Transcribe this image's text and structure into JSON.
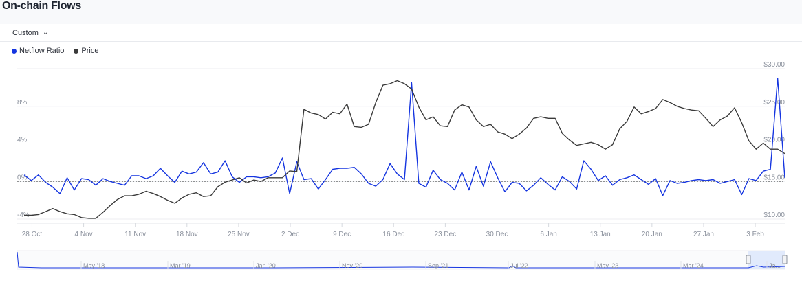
{
  "page": {
    "title": "On-chain Flows"
  },
  "toolbar": {
    "range_label": "Custom"
  },
  "legend": [
    {
      "label": "Netflow Ratio",
      "color": "#1535e0"
    },
    {
      "label": "Price",
      "color": "#3a3a3a"
    }
  ],
  "chart_data": {
    "type": "line",
    "x_tick_labels": [
      "28 Oct",
      "4 Nov",
      "11 Nov",
      "18 Nov",
      "25 Nov",
      "2 Dec",
      "9 Dec",
      "16 Dec",
      "23 Dec",
      "30 Dec",
      "6 Jan",
      "13 Jan",
      "20 Jan",
      "27 Jan",
      "3 Feb"
    ],
    "x_range": [
      "2024-10-26",
      "2025-02-07"
    ],
    "left_axis": {
      "ticks": [
        "-4%",
        "0%",
        "4%",
        "8%"
      ],
      "values": [
        -4,
        0,
        4,
        8
      ],
      "range": [
        -4,
        12
      ]
    },
    "right_axis": {
      "ticks": [
        "$10.00",
        "$15.00",
        "$20.00",
        "$25.00",
        "$30.00"
      ],
      "values": [
        10,
        15,
        20,
        25,
        30
      ],
      "range": [
        10,
        30
      ]
    },
    "grid": true,
    "series": [
      {
        "name": "Netflow Ratio",
        "axis": "left",
        "color": "#1535e0",
        "values": [
          0.7,
          0.1,
          0.7,
          -0.1,
          -0.6,
          -1.3,
          0.4,
          -0.9,
          0.3,
          0.2,
          -0.4,
          0.3,
          0.0,
          -0.2,
          -0.4,
          0.6,
          0.6,
          0.3,
          0.6,
          1.4,
          0.6,
          -0.1,
          1.1,
          0.8,
          1.0,
          2.0,
          0.8,
          1.0,
          2.2,
          0.5,
          -0.1,
          0.5,
          0.5,
          0.4,
          0.5,
          0.9,
          2.5,
          -1.3,
          2.1,
          0.2,
          0.3,
          -0.8,
          0.2,
          1.3,
          1.4,
          1.4,
          1.5,
          0.8,
          -0.2,
          -0.5,
          0.2,
          1.9,
          0.8,
          0.2,
          10.5,
          -0.2,
          -0.6,
          1.2,
          0.2,
          -0.2,
          -0.9,
          1.0,
          -0.9,
          1.6,
          -0.5,
          2.1,
          0.4,
          -1.1,
          -0.1,
          -0.2,
          -1.0,
          -0.4,
          0.4,
          -0.3,
          -0.9,
          0.5,
          0.0,
          -0.8,
          2.2,
          1.3,
          0.1,
          0.6,
          -0.4,
          0.2,
          0.4,
          0.7,
          0.2,
          -0.3,
          0.3,
          -1.5,
          0.1,
          -0.2,
          -0.1,
          0.1,
          0.2,
          0.1,
          0.2,
          -0.2,
          0.0,
          0.2,
          -1.4,
          0.3,
          0.1,
          1.1,
          1.3,
          11.0,
          0.4
        ]
      },
      {
        "name": "Price",
        "axis": "right",
        "color": "#3a3a3a",
        "values": [
          10.5,
          10.5,
          10.6,
          11.0,
          11.4,
          11.0,
          10.7,
          10.6,
          10.2,
          10.1,
          10.1,
          10.9,
          11.8,
          12.6,
          13.1,
          13.1,
          13.3,
          13.7,
          13.4,
          13.0,
          12.5,
          12.1,
          12.8,
          13.3,
          13.5,
          13.0,
          13.1,
          14.3,
          14.9,
          15.2,
          15.5,
          14.8,
          15.2,
          15.0,
          15.5,
          15.5,
          15.5,
          16.4,
          16.3,
          24.6,
          24.1,
          23.9,
          23.3,
          24.2,
          24.0,
          25.3,
          22.3,
          22.2,
          22.6,
          25.5,
          27.8,
          28.0,
          28.4,
          28.0,
          27.3,
          24.9,
          23.2,
          23.6,
          22.4,
          22.3,
          24.5,
          25.2,
          24.9,
          23.2,
          22.3,
          22.6,
          21.6,
          21.3,
          20.7,
          21.3,
          22.1,
          23.4,
          23.6,
          23.4,
          23.4,
          21.4,
          20.5,
          19.8,
          20.0,
          20.2,
          19.9,
          19.3,
          19.9,
          22.0,
          23.0,
          24.9,
          24.0,
          24.3,
          24.7,
          25.9,
          25.5,
          25.0,
          24.7,
          24.5,
          24.4,
          23.4,
          22.3,
          23.2,
          23.7,
          24.8,
          22.8,
          20.4,
          19.3,
          20.1,
          19.3,
          19.3,
          18.7
        ]
      }
    ]
  },
  "navigator": {
    "labels": [
      "May '18",
      "Mar '19",
      "Jan '20",
      "Nov '20",
      "Sep '21",
      "Jul '22",
      "May '23",
      "Mar '24",
      "Ja..."
    ]
  }
}
